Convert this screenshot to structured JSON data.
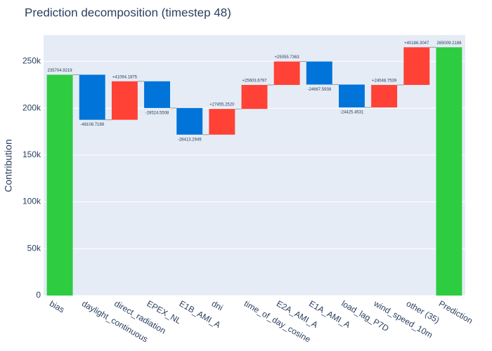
{
  "chart_data": {
    "type": "waterfall",
    "title": "Prediction decomposition (timestep 48)",
    "y_label": "Contribution",
    "categories": [
      "bias",
      "daylight_continuous",
      "direct_radiation",
      "EPEX_NL",
      "E1B_AMI_A",
      "dni",
      "time_of_day_cosine",
      "E2A_AMI_A",
      "E1A_AMI_A",
      "load_lag_P7D",
      "wind_speed_10m",
      "other (35)",
      "Prediction"
    ],
    "measure": [
      "absolute",
      "relative",
      "relative",
      "relative",
      "relative",
      "relative",
      "relative",
      "relative",
      "relative",
      "relative",
      "relative",
      "relative",
      "total"
    ],
    "values": [
      235704.9219,
      -48108.7188,
      41094.1875,
      -28524.5508,
      -28413.2949,
      27455.252,
      25603.6797,
      25055.7363,
      -24667.5938,
      -24425.4531,
      24048.7539,
      40186.3047,
      265009.2188
    ],
    "value_labels": [
      "235704.9219",
      "-48108.7188",
      "+41094.1875",
      "-28524.5508",
      "-28413.2949",
      "+27455.2520",
      "+25603.6797",
      "+25055.7363",
      "-24667.5938",
      "-24425.4531",
      "+24048.7539",
      "+40186.3047",
      "265009.2188"
    ],
    "colors": {
      "increasing": "#ff4136",
      "decreasing": "#0074d9",
      "total": "#2ecc40"
    },
    "ylim": [
      0,
      278000
    ],
    "yticks": [
      0,
      {
        "value": 50000,
        "label": "50k"
      },
      {
        "value": 100000,
        "label": "100k"
      },
      {
        "value": 150000,
        "label": "150k"
      },
      {
        "value": 200000,
        "label": "200k"
      },
      {
        "value": 250000,
        "label": "250k"
      }
    ],
    "grid": true
  }
}
